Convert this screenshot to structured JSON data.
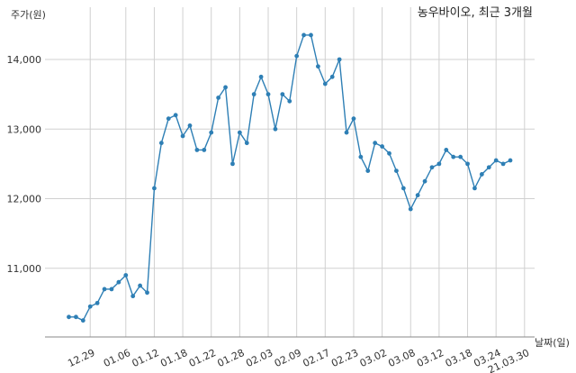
{
  "chart_data": {
    "type": "line",
    "title": "농우바이오, 최근 3개월",
    "ylabel": "주가(원)",
    "xlabel": "날짜(일)",
    "ylim": [
      10000,
      14500
    ],
    "yticks": [
      11000,
      12000,
      13000,
      14000
    ],
    "ytick_labels": [
      "11,000",
      "12,000",
      "13,000",
      "14,000"
    ],
    "xtick_labels": [
      "12.29",
      "01.06",
      "01.12",
      "01.18",
      "01.22",
      "01.28",
      "02.03",
      "02.09",
      "02.17",
      "02.23",
      "03.02",
      "03.08",
      "03.12",
      "03.18",
      "03.24",
      "21.03.30"
    ],
    "xtick_index": [
      3,
      8,
      12,
      16,
      20,
      24,
      28,
      32,
      36,
      40,
      44,
      48,
      52,
      56,
      60,
      64
    ],
    "grid": true,
    "color": "#2e7fb5",
    "series": [
      {
        "values": [
          10300,
          10300,
          10250,
          10450,
          10500,
          10700,
          10700,
          10800,
          10900,
          10600,
          10750,
          10650,
          12150,
          12800,
          13150,
          13200,
          12900,
          13050,
          12700,
          12700,
          12950,
          13450,
          13600,
          12500,
          12950,
          12800,
          13500,
          13750,
          13500,
          13000,
          13500,
          13400,
          14050,
          14350,
          14350,
          13900,
          13650,
          13750,
          14000,
          12950,
          13150,
          12600,
          12400,
          12800,
          12750,
          12650,
          12400,
          12150,
          11850,
          12050,
          12250,
          12450,
          12500,
          12700,
          12600,
          12600,
          12500,
          12150,
          12350,
          12450,
          12550,
          12500,
          12550
        ]
      }
    ]
  }
}
